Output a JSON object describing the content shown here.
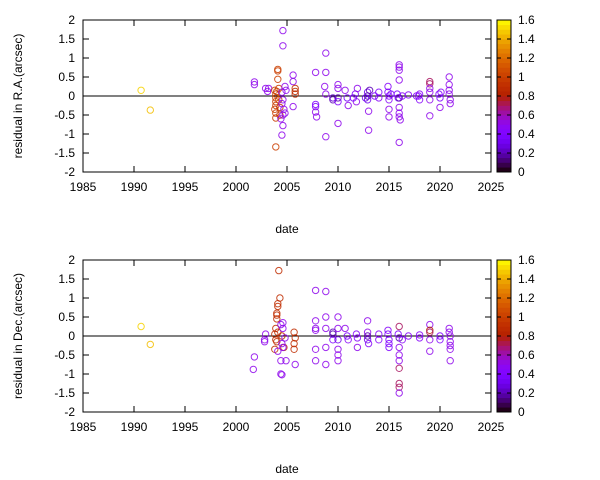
{
  "chart_data": [
    {
      "type": "scatter",
      "xlabel": "date",
      "ylabel": "residual in R.A.(arcsec)",
      "xlim": [
        1985,
        2025
      ],
      "ylim": [
        -2,
        2
      ],
      "xticks": [
        "1985",
        "1990",
        "1995",
        "2000",
        "2005",
        "2010",
        "2015",
        "2020",
        "2025"
      ],
      "yticks": [
        "-2",
        "-1.5",
        "-1",
        "-0.5",
        "0",
        "0.5",
        "1",
        "1.5",
        "2"
      ],
      "colorbar": {
        "range": [
          0,
          1.6
        ],
        "ticks": [
          "0",
          "0.2",
          "0.4",
          "0.6",
          "0.8",
          "1",
          "1.2",
          "1.4",
          "1.6"
        ]
      },
      "zero_line": true,
      "grid": false,
      "marker": "open-circle",
      "points": [
        [
          1990.7,
          0.15,
          1.5
        ],
        [
          1991.6,
          -0.37,
          1.45
        ],
        [
          2001.8,
          0.37,
          0.5
        ],
        [
          2001.8,
          0.3,
          0.5
        ],
        [
          2002.9,
          0.2,
          0.5
        ],
        [
          2003.1,
          0.12,
          0.5
        ],
        [
          2003.2,
          0.2,
          0.5
        ],
        [
          2003.8,
          0.15,
          1.0
        ],
        [
          2003.9,
          0.05,
          1.0
        ],
        [
          2003.9,
          -0.05,
          1.0
        ],
        [
          2003.9,
          -0.15,
          1.0
        ],
        [
          2003.9,
          -0.25,
          1.0
        ],
        [
          2003.8,
          -0.35,
          1.0
        ],
        [
          2003.9,
          -0.45,
          1.0
        ],
        [
          2003.9,
          -0.58,
          1.0
        ],
        [
          2003.9,
          -1.34,
          1.0
        ],
        [
          2004.1,
          0.7,
          1.0
        ],
        [
          2004.1,
          0.66,
          1.0
        ],
        [
          2004.1,
          0.44,
          1.0
        ],
        [
          2004.2,
          0.2,
          1.0
        ],
        [
          2004.0,
          0.12,
          1.0
        ],
        [
          2004.2,
          -0.1,
          1.0
        ],
        [
          2004.3,
          -0.3,
          0.9
        ],
        [
          2004.3,
          -0.5,
          0.9
        ],
        [
          2004.6,
          1.72,
          0.5
        ],
        [
          2004.6,
          1.32,
          0.5
        ],
        [
          2004.5,
          0.1,
          0.5
        ],
        [
          2004.6,
          -0.1,
          0.5
        ],
        [
          2004.5,
          -0.2,
          0.5
        ],
        [
          2004.7,
          -0.35,
          0.5
        ],
        [
          2004.6,
          -0.5,
          0.5
        ],
        [
          2004.4,
          -0.6,
          0.5
        ],
        [
          2004.6,
          -0.78,
          0.5
        ],
        [
          2004.5,
          -1.03,
          0.5
        ],
        [
          2004.8,
          0.25,
          0.5
        ],
        [
          2004.9,
          0.15,
          0.5
        ],
        [
          2004.8,
          -0.45,
          0.5
        ],
        [
          2005.6,
          0.55,
          0.5
        ],
        [
          2005.6,
          0.38,
          0.5
        ],
        [
          2005.8,
          0.2,
          0.9
        ],
        [
          2005.8,
          0.12,
          0.9
        ],
        [
          2005.8,
          0.05,
          0.9
        ],
        [
          2005.6,
          -0.28,
          0.5
        ],
        [
          2007.8,
          0.62,
          0.5
        ],
        [
          2007.8,
          -0.22,
          0.4
        ],
        [
          2007.8,
          -0.28,
          0.4
        ],
        [
          2007.8,
          -0.42,
          0.5
        ],
        [
          2007.9,
          -0.55,
          0.5
        ],
        [
          2008.8,
          1.13,
          0.5
        ],
        [
          2008.8,
          0.62,
          0.5
        ],
        [
          2008.7,
          0.25,
          0.5
        ],
        [
          2008.8,
          0.05,
          0.5
        ],
        [
          2008.8,
          -1.07,
          0.5
        ],
        [
          2009.5,
          -0.1,
          0.2
        ],
        [
          2009.5,
          -0.05,
          0.25
        ],
        [
          2010,
          0.3,
          0.5
        ],
        [
          2010,
          0.2,
          0.5
        ],
        [
          2010,
          -0.05,
          0.2
        ],
        [
          2010,
          -0.15,
          0.4
        ],
        [
          2010,
          -0.72,
          0.5
        ],
        [
          2010.7,
          0.15,
          0.5
        ],
        [
          2010.9,
          -0.05,
          0.35
        ],
        [
          2011,
          -0.25,
          0.5
        ],
        [
          2011.7,
          0.05,
          0.4
        ],
        [
          2011.9,
          0.2,
          0.5
        ],
        [
          2011.8,
          -0.15,
          0.5
        ],
        [
          2011.5,
          -0.05,
          0.4
        ],
        [
          2012.9,
          0.1,
          0.3
        ],
        [
          2012.9,
          0.0,
          0.2
        ],
        [
          2012.9,
          -0.1,
          0.3
        ],
        [
          2013,
          -0.4,
          0.5
        ],
        [
          2013,
          -0.9,
          0.5
        ],
        [
          2013.1,
          0.15,
          0.2
        ],
        [
          2012.7,
          -0.05,
          0.3
        ],
        [
          2014,
          0.1,
          0.4
        ],
        [
          2014,
          -0.05,
          0.45
        ],
        [
          2013.6,
          0.0,
          0.4
        ],
        [
          2014.9,
          0.25,
          0.45
        ],
        [
          2014.9,
          0.1,
          0.4
        ],
        [
          2015,
          0.0,
          0.45
        ],
        [
          2015,
          -0.1,
          0.45
        ],
        [
          2015,
          -0.35,
          0.5
        ],
        [
          2015,
          -0.55,
          0.5
        ],
        [
          2015.2,
          0.05,
          0.4
        ],
        [
          2015.8,
          0.05,
          0.4
        ],
        [
          2015.9,
          -0.05,
          0.4
        ],
        [
          2016,
          0.82,
          0.5
        ],
        [
          2016,
          0.76,
          0.5
        ],
        [
          2016,
          0.68,
          0.5
        ],
        [
          2016,
          0.42,
          0.5
        ],
        [
          2016,
          -0.05,
          0.2
        ],
        [
          2016,
          -0.3,
          0.5
        ],
        [
          2016,
          -0.45,
          0.5
        ],
        [
          2016,
          -0.55,
          0.5
        ],
        [
          2016.1,
          -0.63,
          0.5
        ],
        [
          2016,
          -1.22,
          0.5
        ],
        [
          2016.3,
          0.0,
          0.45
        ],
        [
          2016.9,
          0.03,
          0.45
        ],
        [
          2017.9,
          0.0,
          0.45
        ],
        [
          2018,
          -0.1,
          0.45
        ],
        [
          2018,
          0.05,
          0.45
        ],
        [
          2017.7,
          0.0,
          0.45
        ],
        [
          2019,
          0.38,
          0.7
        ],
        [
          2019,
          0.32,
          0.7
        ],
        [
          2019,
          0.2,
          0.5
        ],
        [
          2019,
          0.1,
          0.5
        ],
        [
          2019,
          -0.1,
          0.5
        ],
        [
          2019,
          -0.52,
          0.5
        ],
        [
          2019.9,
          0.05,
          0.4
        ],
        [
          2020,
          -0.05,
          0.4
        ],
        [
          2020,
          -0.3,
          0.5
        ],
        [
          2020.1,
          0.1,
          0.45
        ],
        [
          2020.9,
          0.5,
          0.5
        ],
        [
          2020.9,
          0.3,
          0.5
        ],
        [
          2020.9,
          0.15,
          0.5
        ],
        [
          2020.9,
          0.05,
          0.5
        ],
        [
          2021,
          -0.1,
          0.5
        ],
        [
          2021,
          -0.2,
          0.5
        ]
      ]
    },
    {
      "type": "scatter",
      "xlabel": "date",
      "ylabel": "residual in Dec.(arcsec)",
      "xlim": [
        1985,
        2025
      ],
      "ylim": [
        -2,
        2
      ],
      "xticks": [
        "1985",
        "1990",
        "1995",
        "2000",
        "2005",
        "2010",
        "2015",
        "2020",
        "2025"
      ],
      "yticks": [
        "-2",
        "-1.5",
        "-1",
        "-0.5",
        "0",
        "0.5",
        "1",
        "1.5",
        "2"
      ],
      "colorbar": {
        "range": [
          0,
          1.6
        ],
        "ticks": [
          "0",
          "0.2",
          "0.4",
          "0.6",
          "0.8",
          "1",
          "1.2",
          "1.4",
          "1.6"
        ]
      },
      "zero_line": true,
      "grid": false,
      "marker": "open-circle",
      "points": [
        [
          1990.7,
          0.25,
          1.5
        ],
        [
          1991.6,
          -0.22,
          1.45
        ],
        [
          2001.8,
          -0.55,
          0.5
        ],
        [
          2001.7,
          -0.88,
          0.5
        ],
        [
          2002.9,
          0.05,
          0.5
        ],
        [
          2002.8,
          -0.1,
          0.5
        ],
        [
          2002.8,
          -0.15,
          0.5
        ],
        [
          2004.2,
          1.72,
          0.9
        ],
        [
          2004.3,
          1.0,
          0.9
        ],
        [
          2004.1,
          0.85,
          0.9
        ],
        [
          2004.1,
          0.78,
          0.9
        ],
        [
          2004.0,
          0.6,
          0.9
        ],
        [
          2004.0,
          0.55,
          0.9
        ],
        [
          2004.0,
          0.45,
          0.9
        ],
        [
          2003.9,
          0.2,
          0.9
        ],
        [
          2004.1,
          0.1,
          0.9
        ],
        [
          2003.8,
          0.05,
          0.9
        ],
        [
          2003.9,
          -0.1,
          0.9
        ],
        [
          2004.0,
          -0.15,
          0.9
        ],
        [
          2003.8,
          -0.35,
          0.9
        ],
        [
          2004.5,
          0.0,
          0.9
        ],
        [
          2004.7,
          -0.3,
          0.9
        ],
        [
          2004.1,
          -0.4,
          0.5
        ],
        [
          2004.4,
          -0.65,
          0.5
        ],
        [
          2004.4,
          -1.0,
          0.5
        ],
        [
          2004.5,
          -1.02,
          0.5
        ],
        [
          2004.9,
          -0.65,
          0.5
        ],
        [
          2004.4,
          0.3,
          0.5
        ],
        [
          2004.6,
          0.35,
          0.5
        ],
        [
          2004.6,
          0.2,
          0.5
        ],
        [
          2004.5,
          -0.2,
          0.5
        ],
        [
          2004.6,
          -0.3,
          0.5
        ],
        [
          2004.8,
          -0.05,
          0.5
        ],
        [
          2005.7,
          0.1,
          0.9
        ],
        [
          2005.8,
          -0.05,
          0.9
        ],
        [
          2005.7,
          -0.2,
          0.9
        ],
        [
          2005.7,
          -0.35,
          0.9
        ],
        [
          2005.8,
          -0.75,
          0.5
        ],
        [
          2007.8,
          1.2,
          0.5
        ],
        [
          2007.8,
          0.4,
          0.5
        ],
        [
          2007.8,
          0.2,
          0.5
        ],
        [
          2007.8,
          0.15,
          0.5
        ],
        [
          2007.8,
          -0.35,
          0.5
        ],
        [
          2007.8,
          -0.65,
          0.5
        ],
        [
          2008.8,
          1.17,
          0.5
        ],
        [
          2008.8,
          0.5,
          0.5
        ],
        [
          2008.8,
          0.2,
          0.5
        ],
        [
          2008.8,
          -0.3,
          0.5
        ],
        [
          2008.8,
          -0.75,
          0.5
        ],
        [
          2009.5,
          0.1,
          0.2
        ],
        [
          2009.5,
          0.05,
          0.2
        ],
        [
          2009.5,
          -0.1,
          0.4
        ],
        [
          2010,
          0.5,
          0.5
        ],
        [
          2010,
          0.2,
          0.5
        ],
        [
          2010,
          -0.1,
          0.3
        ],
        [
          2010,
          -0.35,
          0.5
        ],
        [
          2010,
          -0.5,
          0.5
        ],
        [
          2010,
          -0.65,
          0.5
        ],
        [
          2010.7,
          0.2,
          0.5
        ],
        [
          2010.9,
          0.0,
          0.4
        ],
        [
          2011,
          -0.1,
          0.45
        ],
        [
          2011.8,
          0.05,
          0.45
        ],
        [
          2011.9,
          -0.05,
          0.45
        ],
        [
          2011.9,
          -0.3,
          0.5
        ],
        [
          2012.9,
          0.4,
          0.5
        ],
        [
          2012.9,
          0.1,
          0.5
        ],
        [
          2012.9,
          0.0,
          0.2
        ],
        [
          2012.9,
          -0.1,
          0.3
        ],
        [
          2013,
          -0.2,
          0.45
        ],
        [
          2014,
          0.05,
          0.45
        ],
        [
          2014,
          -0.1,
          0.45
        ],
        [
          2014.9,
          0.15,
          0.45
        ],
        [
          2014.9,
          0.05,
          0.4
        ],
        [
          2015,
          -0.1,
          0.4
        ],
        [
          2015,
          -0.2,
          0.4
        ],
        [
          2015,
          -0.3,
          0.4
        ],
        [
          2015.9,
          0.05,
          0.4
        ],
        [
          2016,
          0.25,
          0.7
        ],
        [
          2016,
          -0.05,
          0.2
        ],
        [
          2016,
          -0.3,
          0.5
        ],
        [
          2016,
          -0.5,
          0.5
        ],
        [
          2016,
          -0.65,
          0.5
        ],
        [
          2016,
          -0.85,
          0.7
        ],
        [
          2016,
          -1.25,
          0.7
        ],
        [
          2016,
          -1.35,
          0.7
        ],
        [
          2016,
          -1.5,
          0.5
        ],
        [
          2016.3,
          -0.1,
          0.45
        ],
        [
          2016.9,
          0.0,
          0.45
        ],
        [
          2018,
          0.03,
          0.45
        ],
        [
          2018,
          -0.05,
          0.45
        ],
        [
          2019,
          0.3,
          0.5
        ],
        [
          2019,
          0.15,
          0.8
        ],
        [
          2019,
          0.1,
          0.7
        ],
        [
          2019,
          -0.1,
          0.5
        ],
        [
          2019,
          -0.4,
          0.5
        ],
        [
          2020,
          0.0,
          0.4
        ],
        [
          2020,
          -0.1,
          0.4
        ],
        [
          2020.9,
          0.2,
          0.5
        ],
        [
          2020.9,
          0.1,
          0.5
        ],
        [
          2021,
          0.0,
          0.5
        ],
        [
          2021,
          -0.15,
          0.5
        ],
        [
          2021,
          -0.25,
          0.5
        ],
        [
          2021,
          -0.35,
          0.5
        ],
        [
          2021,
          -0.65,
          0.5
        ]
      ]
    }
  ]
}
